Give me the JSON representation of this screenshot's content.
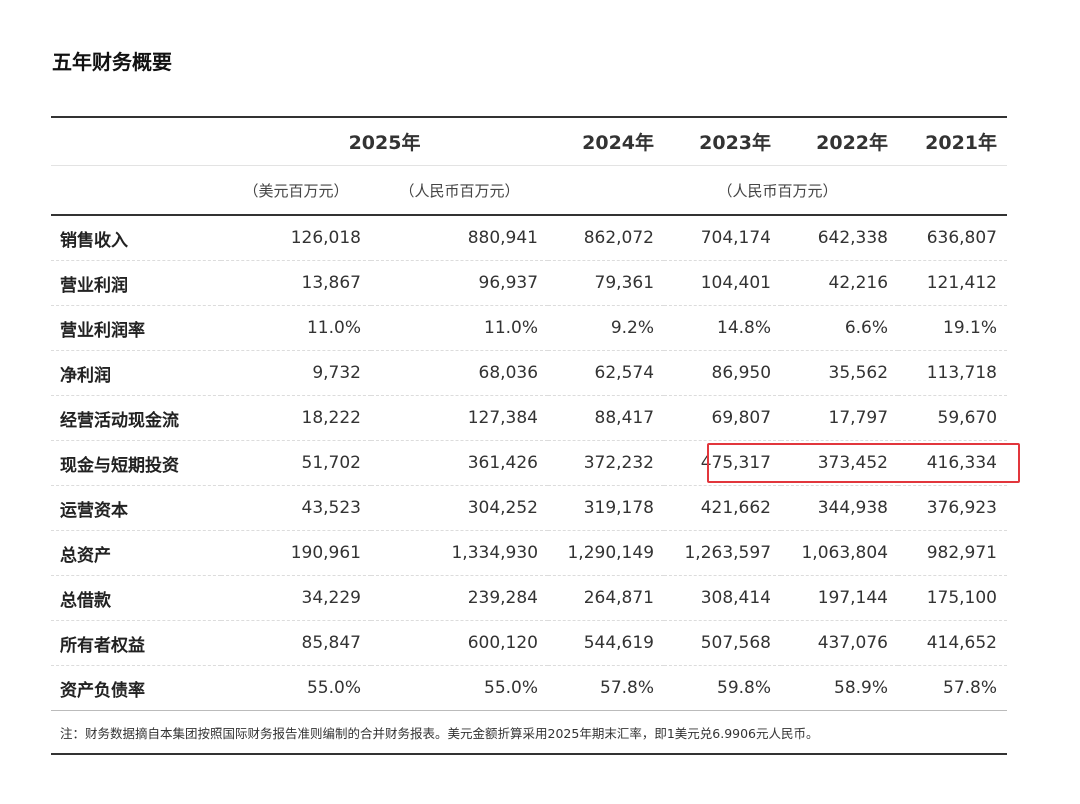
{
  "title": "五年财务概要",
  "header": {
    "year_2025": "2025年",
    "year_2024": "2024年",
    "year_2023": "2023年",
    "year_2022": "2022年",
    "year_2021": "2021年",
    "unit_usd": "（美元百万元）",
    "unit_rmb_2025": "（人民币百万元）",
    "unit_rmb_other": "（人民币百万元）"
  },
  "rows": [
    {
      "label": "销售收入",
      "usd2025": "126,018",
      "rmb2025": "880,941",
      "y2024": "862,072",
      "y2023": "704,174",
      "y2022": "642,338",
      "y2021": "636,807"
    },
    {
      "label": "营业利润",
      "usd2025": "13,867",
      "rmb2025": "96,937",
      "y2024": "79,361",
      "y2023": "104,401",
      "y2022": "42,216",
      "y2021": "121,412"
    },
    {
      "label": "营业利润率",
      "usd2025": "11.0%",
      "rmb2025": "11.0%",
      "y2024": "9.2%",
      "y2023": "14.8%",
      "y2022": "6.6%",
      "y2021": "19.1%"
    },
    {
      "label": "净利润",
      "usd2025": "9,732",
      "rmb2025": "68,036",
      "y2024": "62,574",
      "y2023": "86,950",
      "y2022": "35,562",
      "y2021": "113,718"
    },
    {
      "label": "经营活动现金流",
      "usd2025": "18,222",
      "rmb2025": "127,384",
      "y2024": "88,417",
      "y2023": "69,807",
      "y2022": "17,797",
      "y2021": "59,670"
    },
    {
      "label": "现金与短期投资",
      "usd2025": "51,702",
      "rmb2025": "361,426",
      "y2024": "372,232",
      "y2023": "475,317",
      "y2022": "373,452",
      "y2021": "416,334"
    },
    {
      "label": "运营资本",
      "usd2025": "43,523",
      "rmb2025": "304,252",
      "y2024": "319,178",
      "y2023": "421,662",
      "y2022": "344,938",
      "y2021": "376,923"
    },
    {
      "label": "总资产",
      "usd2025": "190,961",
      "rmb2025": "1,334,930",
      "y2024": "1,290,149",
      "y2023": "1,263,597",
      "y2022": "1,063,804",
      "y2021": "982,971"
    },
    {
      "label": "总借款",
      "usd2025": "34,229",
      "rmb2025": "239,284",
      "y2024": "264,871",
      "y2023": "308,414",
      "y2022": "197,144",
      "y2021": "175,100"
    },
    {
      "label": "所有者权益",
      "usd2025": "85,847",
      "rmb2025": "600,120",
      "y2024": "544,619",
      "y2023": "507,568",
      "y2022": "437,076",
      "y2021": "414,652"
    },
    {
      "label": "资产负债率",
      "usd2025": "55.0%",
      "rmb2025": "55.0%",
      "y2024": "57.8%",
      "y2023": "59.8%",
      "y2022": "58.9%",
      "y2021": "57.8%"
    }
  ],
  "note": "注：财务数据摘自本集团按照国际财务报告准则编制的合并财务报表。美元金额折算采用2025年期末汇率，即1美元兑6.9906元人民币。",
  "highlight_color": "#e2363c"
}
